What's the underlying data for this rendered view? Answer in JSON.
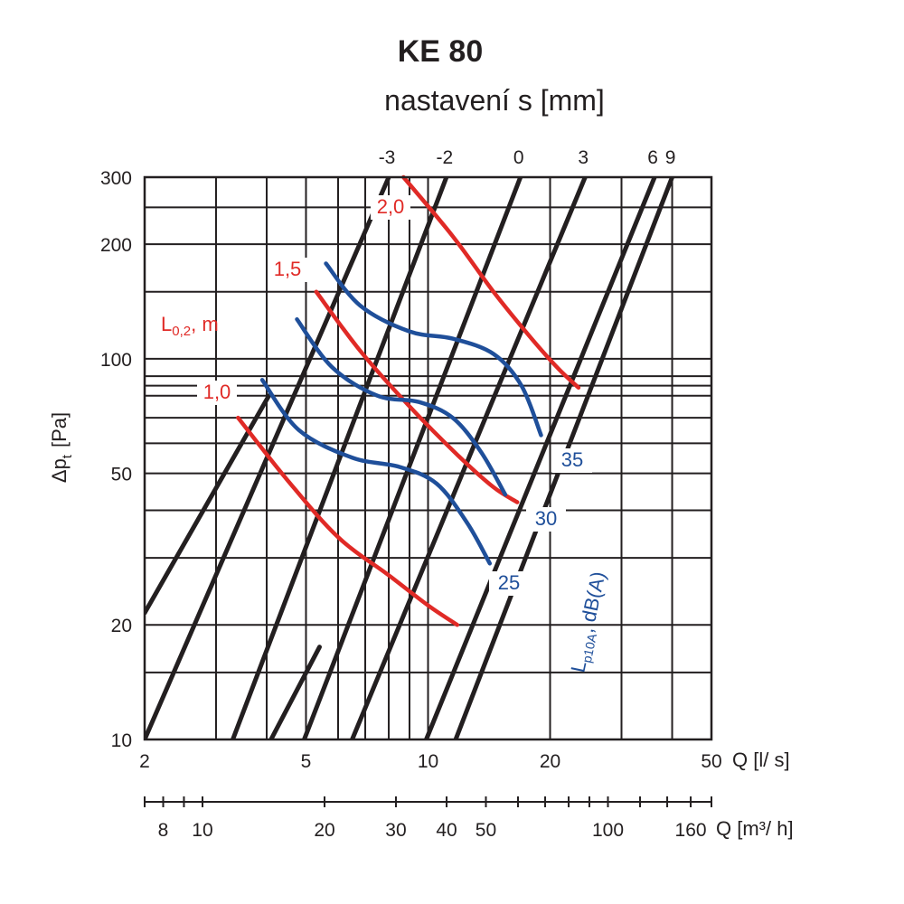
{
  "chart_data": {
    "type": "line",
    "title": "KE 80",
    "subtitle": "nastavení s [mm]",
    "ylabel": "Δp",
    "ylabel_sub": "t",
    "ylabel_unit": "[Pa]",
    "xlabel": "Q [l/ s]",
    "xlabel2": "Q [m³/ h]",
    "xscale": "log",
    "yscale": "log",
    "xlim": [
      2,
      50
    ],
    "ylim": [
      10,
      300
    ],
    "x_ticks": [
      2,
      5,
      10,
      20,
      50
    ],
    "x_tick_labels": [
      "2",
      "5",
      "10",
      "20",
      "50"
    ],
    "y_ticks": [
      10,
      20,
      50,
      100,
      200,
      300
    ],
    "y_tick_labels": [
      "10",
      "20",
      "50",
      "100",
      "200",
      "300"
    ],
    "x2_ticks": [
      8,
      10,
      20,
      30,
      40,
      50,
      100,
      160
    ],
    "x2_tick_labels": [
      "8",
      "10",
      "20",
      "30",
      "40",
      "50",
      "100",
      "160"
    ],
    "grid": true,
    "setting_lines": [
      {
        "name": "-3",
        "points": [
          [
            2,
            10
          ],
          [
            8.0,
            300
          ]
        ]
      },
      {
        "name": "-2",
        "points": [
          [
            3.3,
            10
          ],
          [
            11.1,
            300
          ]
        ]
      },
      {
        "name": "0",
        "points": [
          [
            4.95,
            10
          ],
          [
            16.9,
            300
          ]
        ]
      },
      {
        "name": "3",
        "points": [
          [
            6.5,
            10
          ],
          [
            24.4,
            300
          ]
        ]
      },
      {
        "name": "6",
        "points": [
          [
            9.9,
            10
          ],
          [
            36.2,
            300
          ]
        ]
      },
      {
        "name": "9",
        "points": [
          [
            11.7,
            10
          ],
          [
            40.0,
            300
          ]
        ]
      },
      {
        "name": "",
        "points": [
          [
            2,
            21.5
          ],
          [
            4.05,
            80
          ]
        ]
      },
      {
        "name": "",
        "points": [
          [
            4.1,
            10
          ],
          [
            5.4,
            17.5
          ]
        ]
      }
    ],
    "series": [
      {
        "name": "1,0",
        "color": "#e02a26",
        "points": [
          [
            3.4,
            70
          ],
          [
            4.5,
            48
          ],
          [
            6.0,
            34
          ],
          [
            8.0,
            27
          ],
          [
            10.0,
            22.5
          ],
          [
            11.8,
            20
          ]
        ]
      },
      {
        "name": "1,5",
        "color": "#e02a26",
        "points": [
          [
            5.3,
            150
          ],
          [
            6.8,
            105
          ],
          [
            9.0,
            75
          ],
          [
            11.8,
            56
          ],
          [
            14.5,
            46
          ],
          [
            16.6,
            42
          ]
        ]
      },
      {
        "name": "2,0",
        "color": "#e02a26",
        "points": [
          [
            8.7,
            300
          ],
          [
            11.5,
            210
          ],
          [
            14.5,
            150
          ],
          [
            18.0,
            113
          ],
          [
            21.0,
            94
          ],
          [
            23.5,
            84
          ]
        ]
      },
      {
        "name": "25",
        "color": "#1f4f9a",
        "points": [
          [
            3.9,
            88
          ],
          [
            4.8,
            65
          ],
          [
            6.5,
            55
          ],
          [
            8.5,
            52
          ],
          [
            10.5,
            47
          ],
          [
            12.5,
            37
          ],
          [
            14.2,
            29
          ]
        ]
      },
      {
        "name": "30",
        "color": "#1f4f9a",
        "points": [
          [
            4.75,
            127
          ],
          [
            5.8,
            95
          ],
          [
            7.5,
            80
          ],
          [
            9.5,
            77
          ],
          [
            11.5,
            70
          ],
          [
            13.5,
            57
          ],
          [
            15.5,
            44
          ]
        ]
      },
      {
        "name": "35",
        "color": "#1f4f9a",
        "points": [
          [
            5.6,
            178
          ],
          [
            6.8,
            138
          ],
          [
            9.0,
            118
          ],
          [
            11.5,
            113
          ],
          [
            14.5,
            103
          ],
          [
            17.0,
            85
          ],
          [
            19.0,
            63
          ]
        ]
      }
    ],
    "annotations": {
      "red_param_label": "L",
      "red_param_sub": "0,2",
      "red_param_unit": ", m",
      "blue_param_label": "L",
      "blue_param_sub": "p10A",
      "blue_param_unit": ", dB(A)"
    },
    "colors": {
      "red": "#e02a26",
      "blue": "#1f4f9a",
      "black": "#231f20"
    }
  }
}
